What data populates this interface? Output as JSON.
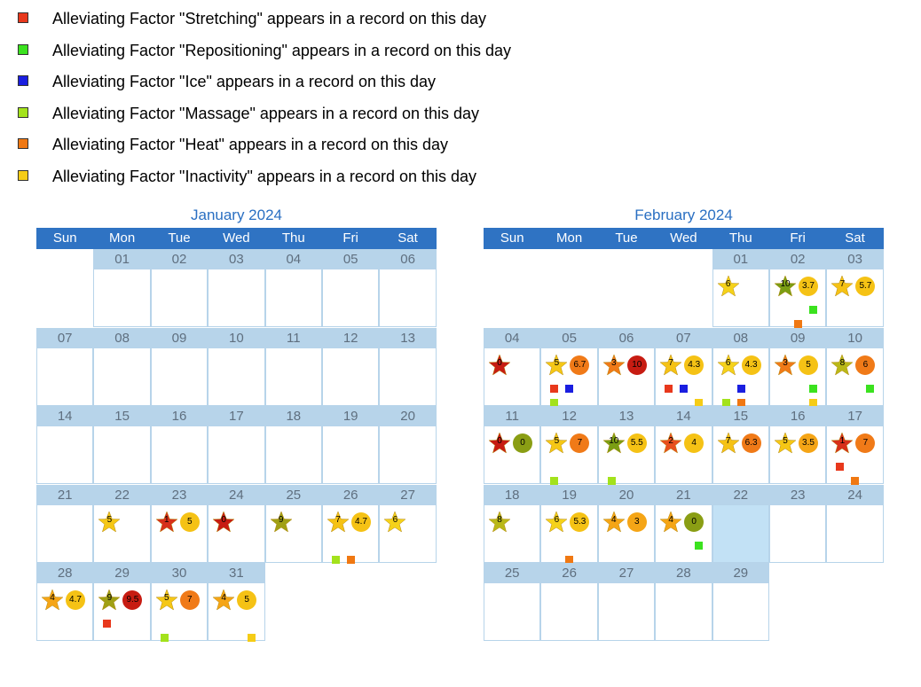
{
  "legend": [
    {
      "label": "Alleviating Factor \"Stretching\" appears in a record on this day",
      "color": "#e8381c"
    },
    {
      "label": "Alleviating Factor \"Repositioning\" appears in a record on this day",
      "color": "#3be21f"
    },
    {
      "label": "Alleviating Factor \"Ice\" appears in a record on this day",
      "color": "#1a1ee0"
    },
    {
      "label": "Alleviating Factor \"Massage\" appears in a record on this day",
      "color": "#a3e21c"
    },
    {
      "label": "Alleviating Factor \"Heat\" appears in a record on this day",
      "color": "#f07812"
    },
    {
      "label": "Alleviating Factor \"Inactivity\" appears in a record on this day",
      "color": "#f5cc16"
    }
  ],
  "weekdays": [
    "Sun",
    "Mon",
    "Tue",
    "Wed",
    "Thu",
    "Fri",
    "Sat"
  ],
  "colors": {
    "stretching": "#e8381c",
    "repositioning": "#3be21f",
    "ice": "#1a1ee0",
    "massage": "#a3e21c",
    "heat": "#f07812",
    "inactivity": "#f5cc16",
    "level_colors": {
      "0": "#c71c12",
      "1": "#d7301a",
      "2": "#e8501e",
      "3": "#f07a18",
      "4": "#f5a516",
      "5": "#f5c715",
      "6": "#f5d21a",
      "7": "#f5c215",
      "8": "#b9b818",
      "9": "#a0a014",
      "10": "#7b9e14"
    },
    "circle_colors": {
      "low": "#f5c215",
      "mid": "#f5a516",
      "high": "#f07a18",
      "max": "#c71c12",
      "zero": "#8a9e14"
    }
  },
  "calendars": [
    {
      "title": "January 2024",
      "start_weekday": 1,
      "days_in_month": 31,
      "highlight_day": null,
      "days": {
        "22": {
          "star": "5"
        },
        "23": {
          "star": "1",
          "circle": "5"
        },
        "24": {
          "star": "0"
        },
        "25": {
          "star": "9"
        },
        "26": {
          "star": "7",
          "circle": "4.7",
          "factors": [
            "massage",
            "heat"
          ]
        },
        "27": {
          "star": "6"
        },
        "28": {
          "star": "4",
          "circle": "4.7"
        },
        "29": {
          "star": "9",
          "circle": "9.5",
          "factors": [
            "stretching"
          ]
        },
        "30": {
          "star": "5",
          "circle": "7",
          "factors": [
            "massage"
          ]
        },
        "31": {
          "star": "4",
          "circle": "5",
          "factors": [
            "inactivity"
          ]
        }
      }
    },
    {
      "title": "February 2024",
      "start_weekday": 4,
      "days_in_month": 29,
      "highlight_day": 22,
      "days": {
        "1": {
          "star": "6"
        },
        "2": {
          "star": "10",
          "circle": "3.7",
          "factors": [
            "repositioning",
            "heat"
          ]
        },
        "3": {
          "star": "7",
          "circle": "5.7"
        },
        "4": {
          "star": "0"
        },
        "5": {
          "star": "5",
          "circle": "6.7",
          "factors": [
            "stretching",
            "ice",
            "massage"
          ]
        },
        "6": {
          "star": "3",
          "circle": "10"
        },
        "7": {
          "star": "7",
          "circle": "4.3",
          "factors": [
            "stretching",
            "ice",
            "inactivity"
          ]
        },
        "8": {
          "star": "6",
          "circle": "4.3",
          "factors": [
            "ice",
            "massage",
            "heat"
          ]
        },
        "9": {
          "star": "3",
          "circle": "5",
          "factors": [
            "repositioning",
            "inactivity"
          ]
        },
        "10": {
          "star": "8",
          "circle": "6",
          "factors": [
            "repositioning"
          ]
        },
        "11": {
          "star": "0",
          "circle": "0"
        },
        "12": {
          "star": "5",
          "circle": "7",
          "factors": [
            "massage"
          ]
        },
        "13": {
          "star": "10",
          "circle": "5.5",
          "factors": [
            "massage"
          ]
        },
        "14": {
          "star": "2",
          "circle": "4"
        },
        "15": {
          "star": "7",
          "circle": "6.3"
        },
        "16": {
          "star": "5",
          "circle": "3.5"
        },
        "17": {
          "star": "1",
          "circle": "7",
          "factors": [
            "stretching",
            "heat"
          ]
        },
        "18": {
          "star": "8"
        },
        "19": {
          "star": "6",
          "circle": "5.3",
          "factors": [
            "heat"
          ]
        },
        "20": {
          "star": "4",
          "circle": "3"
        },
        "21": {
          "star": "4",
          "circle": "0",
          "factors": [
            "repositioning"
          ]
        }
      }
    }
  ]
}
